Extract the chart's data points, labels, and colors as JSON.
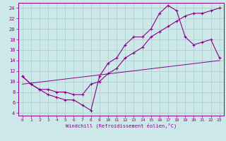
{
  "bg_color": "#cce8e8",
  "grid_color": "#aacccc",
  "line_color": "#880088",
  "xlabel": "Windchill (Refroidissement éolien,°C)",
  "xlim": [
    -0.5,
    23.5
  ],
  "ylim": [
    3.5,
    25.0
  ],
  "yticks": [
    4,
    6,
    8,
    10,
    12,
    14,
    16,
    18,
    20,
    22,
    24
  ],
  "xticks": [
    0,
    1,
    2,
    3,
    4,
    5,
    6,
    7,
    8,
    9,
    10,
    11,
    12,
    13,
    14,
    15,
    16,
    17,
    18,
    19,
    20,
    21,
    22,
    23
  ],
  "line1_x": [
    0,
    1,
    2,
    3,
    4,
    5,
    6,
    7,
    8,
    9,
    10,
    11,
    12,
    13,
    14,
    15,
    16,
    17,
    18,
    19,
    20,
    21,
    22,
    23
  ],
  "line1_y": [
    11,
    9.5,
    8.5,
    7.5,
    7.0,
    6.5,
    6.5,
    5.5,
    4.5,
    11,
    13.5,
    14.5,
    17.0,
    18.5,
    18.5,
    20,
    23,
    24.5,
    23.5,
    18.5,
    17,
    17.5,
    18,
    14.5
  ],
  "line2_x": [
    0,
    1,
    2,
    3,
    4,
    5,
    6,
    7,
    8,
    9,
    10,
    11,
    12,
    13,
    14,
    15,
    16,
    17,
    18,
    19,
    20,
    21,
    22,
    23
  ],
  "line2_y": [
    11,
    9.5,
    8.5,
    8.5,
    8.0,
    8.0,
    7.5,
    7.5,
    9.5,
    10.0,
    11.5,
    12.5,
    14.5,
    15.5,
    16.5,
    18.5,
    19.5,
    20.5,
    21.5,
    22.5,
    23.0,
    23.0,
    23.5,
    24.0
  ],
  "line3_x": [
    0,
    23
  ],
  "line3_y": [
    9.5,
    14.0
  ]
}
